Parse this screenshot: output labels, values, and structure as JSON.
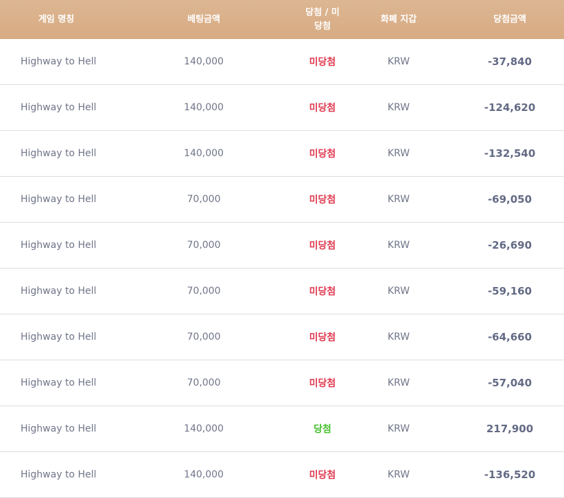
{
  "table": {
    "header": [
      "게임 명칭",
      "베팅금액",
      "당첨 / 미당첨",
      "화폐 지갑",
      "당첨금액"
    ],
    "rows": [
      [
        "Highway to Hell",
        "140,000",
        "미당첨",
        "KRW",
        "-37,840"
      ],
      [
        "Highway to Hell",
        "140,000",
        "미당첨",
        "KRW",
        "-124,620"
      ],
      [
        "Highway to Hell",
        "140,000",
        "미당첨",
        "KRW",
        "-132,540"
      ],
      [
        "Highway to Hell",
        "70,000",
        "미당첨",
        "KRW",
        "-69,050"
      ],
      [
        "Highway to Hell",
        "70,000",
        "미당첨",
        "KRW",
        "-26,690"
      ],
      [
        "Highway to Hell",
        "70,000",
        "미당첨",
        "KRW",
        "-59,160"
      ],
      [
        "Highway to Hell",
        "70,000",
        "미당첨",
        "KRW",
        "-64,660"
      ],
      [
        "Highway to Hell",
        "70,000",
        "미당첨",
        "KRW",
        "-57,040"
      ],
      [
        "Highway to Hell",
        "140,000",
        "당첨",
        "KRW",
        "217,900"
      ],
      [
        "Highway to Hell",
        "140,000",
        "미당첨",
        "KRW",
        "-136,520"
      ]
    ],
    "result_colors": [
      "#e0394f",
      "#e0394f",
      "#e0394f",
      "#e0394f",
      "#e0394f",
      "#e0394f",
      "#e0394f",
      "#e0394f",
      "#46c02e",
      "#e0394f"
    ]
  }
}
